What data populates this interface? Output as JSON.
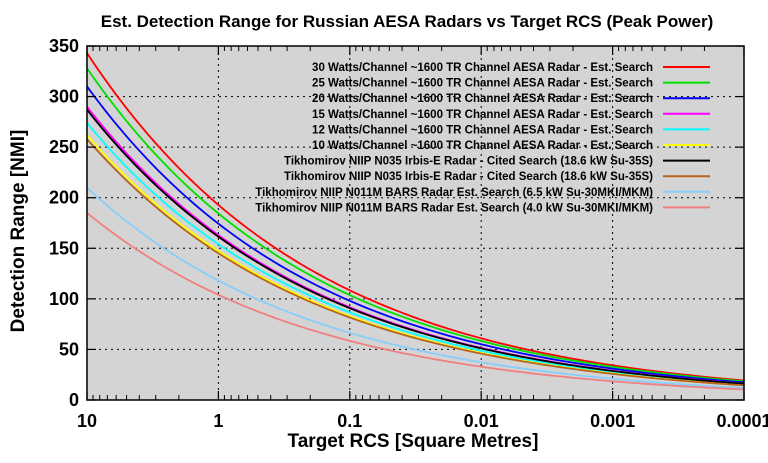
{
  "chart_data": {
    "type": "line",
    "title": "Est. Detection Range for Russian AESA Radars vs Target RCS (Peak Power)",
    "xlabel": "Target RCS [Square Metres]",
    "ylabel": "Detection Range [NMI]",
    "x_scale": "log",
    "x_reversed": true,
    "xlim": [
      10,
      0.0001
    ],
    "ylim": [
      0,
      350
    ],
    "x_ticks": [
      10,
      1,
      0.1,
      0.01,
      0.001,
      0.0001
    ],
    "x_tick_labels": [
      "10",
      "1",
      "0.1",
      "0.01",
      "0.001",
      "0.0001"
    ],
    "y_ticks": [
      0,
      50,
      100,
      150,
      200,
      250,
      300,
      350
    ],
    "y_tick_labels": [
      "0",
      "50",
      "100",
      "150",
      "200",
      "250",
      "300",
      "350"
    ],
    "grid": true,
    "legend_position": "top-right",
    "background_color": "#d4d4d4",
    "series": [
      {
        "name": "30 Watts/Channel ~1600 TR Channel AESA  Radar - Est. Search",
        "color": "#ff0000",
        "range_at_10": 343
      },
      {
        "name": "25 Watts/Channel ~1600 TR Channel AESA  Radar - Est. Search",
        "color": "#00e000",
        "range_at_10": 328
      },
      {
        "name": "20 Watts/Channel ~1600 TR Channel AESA  Radar - Est. Search",
        "color": "#0000ff",
        "range_at_10": 310
      },
      {
        "name": "15 Watts/Channel ~1600 TR Channel AESA  Radar - Est. Search",
        "color": "#ff00ff",
        "range_at_10": 290
      },
      {
        "name": "12 Watts/Channel ~1600 TR Channel AESA  Radar - Est. Search",
        "color": "#00ffff",
        "range_at_10": 274
      },
      {
        "name": "10 Watts/Channel ~1600 TR Channel AESA  Radar - Est. Search",
        "color": "#ffff00",
        "range_at_10": 262
      },
      {
        "name": "Tikhomirov NIIP N035 Irbis-E Radar - Cited Search (18.6 kW Su-35S)",
        "color": "#000000",
        "range_at_10": 287
      },
      {
        "name": "Tikhomirov NIIP N035 Irbis-E Radar - Cited Search (18.6 kW Su-35S)",
        "color": "#b8621b",
        "range_at_10": 258
      },
      {
        "name": "Tikhomirov NIIP N011M BARS Radar Est. Search (6.5 kW Su-30MKI/MKM)",
        "color": "#87cefa",
        "range_at_10": 210
      },
      {
        "name": "Tikhomirov NIIP N011M BARS Radar Est. Search (4.0 kW Su-30MKI/MKM)",
        "color": "#f08080",
        "range_at_10": 185
      }
    ]
  }
}
